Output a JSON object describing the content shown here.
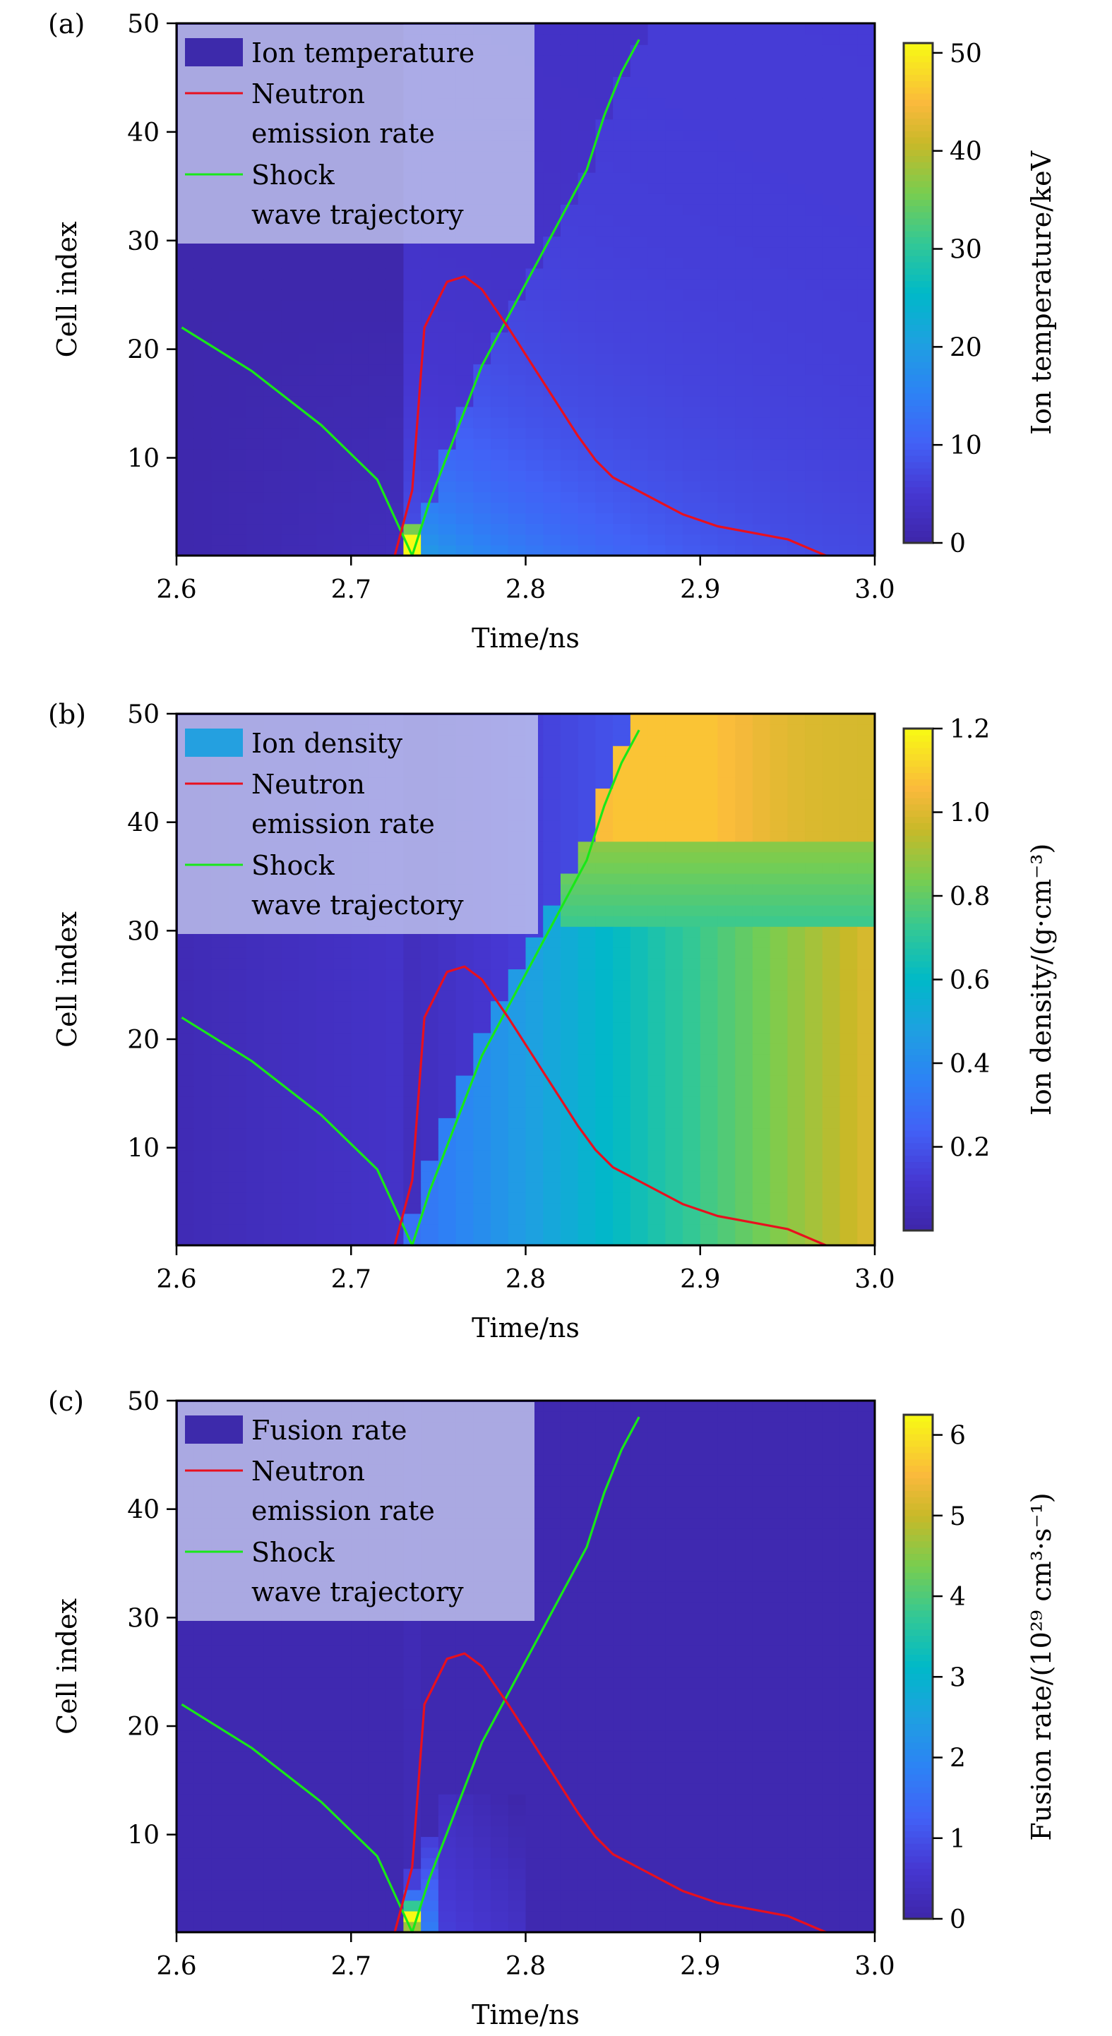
{
  "chart_data": [
    {
      "type": "heatmap",
      "panel_label": "(a)",
      "title": "",
      "xlabel": "Time/ns",
      "ylabel": "Cell index",
      "xlim": [
        2.6,
        3.0
      ],
      "ylim": [
        1,
        50
      ],
      "xticks": [
        "2.6",
        "2.7",
        "2.8",
        "2.9",
        "3.0"
      ],
      "xtick_values": [
        2.6,
        2.7,
        2.8,
        2.9,
        3.0
      ],
      "yticks": [
        "10",
        "20",
        "30",
        "40",
        "50"
      ],
      "ytick_values": [
        10,
        20,
        30,
        40,
        50
      ],
      "colorbar": {
        "label": "Ion temperature/keV",
        "range": [
          0,
          51
        ],
        "ticks": [
          "0",
          "10",
          "20",
          "30",
          "40",
          "50"
        ],
        "tick_values": [
          0,
          10,
          20,
          30,
          40,
          50
        ]
      },
      "legend": {
        "placement": "top-left",
        "entries": [
          {
            "label": "Ion temperature",
            "kind": "patch",
            "color": "#3d2aab"
          },
          {
            "label": "Neutron\nemission rate",
            "kind": "line",
            "color": "#e8101e"
          },
          {
            "label": "Shock\nwave trajectory",
            "kind": "line",
            "color": "#18e818"
          }
        ]
      },
      "heatmap_field": "temperature"
    },
    {
      "type": "heatmap",
      "panel_label": "(b)",
      "title": "",
      "xlabel": "Time/ns",
      "ylabel": "Cell index",
      "xlim": [
        2.6,
        3.0
      ],
      "ylim": [
        1,
        50
      ],
      "xticks": [
        "2.6",
        "2.7",
        "2.8",
        "2.9",
        "3.0"
      ],
      "xtick_values": [
        2.6,
        2.7,
        2.8,
        2.9,
        3.0
      ],
      "yticks": [
        "10",
        "20",
        "30",
        "40",
        "50"
      ],
      "ytick_values": [
        10,
        20,
        30,
        40,
        50
      ],
      "colorbar": {
        "label": "Ion density/(g·cm⁻³)",
        "range": [
          0,
          1.2
        ],
        "ticks": [
          "0.2",
          "0.4",
          "0.6",
          "0.8",
          "1.0",
          "1.2"
        ],
        "tick_values": [
          0.2,
          0.4,
          0.6,
          0.8,
          1.0,
          1.2
        ]
      },
      "legend": {
        "placement": "top-left",
        "entries": [
          {
            "label": "Ion density",
            "kind": "patch",
            "color": "#24a0e0"
          },
          {
            "label": "Neutron\nemission rate",
            "kind": "line",
            "color": "#e8101e"
          },
          {
            "label": "Shock\nwave trajectory",
            "kind": "line",
            "color": "#18e818"
          }
        ]
      },
      "heatmap_field": "density"
    },
    {
      "type": "heatmap",
      "panel_label": "(c)",
      "title": "",
      "xlabel": "Time/ns",
      "ylabel": "Cell index",
      "xlim": [
        2.6,
        3.0
      ],
      "ylim": [
        1,
        50
      ],
      "xticks": [
        "2.6",
        "2.7",
        "2.8",
        "2.9",
        "3.0"
      ],
      "xtick_values": [
        2.6,
        2.7,
        2.8,
        2.9,
        3.0
      ],
      "yticks": [
        "10",
        "20",
        "30",
        "40",
        "50"
      ],
      "ytick_values": [
        10,
        20,
        30,
        40,
        50
      ],
      "colorbar": {
        "label": "Fusion rate/(10²⁹ cm³·s⁻¹)",
        "range": [
          0,
          6.25
        ],
        "ticks": [
          "0",
          "1",
          "2",
          "3",
          "4",
          "5",
          "6"
        ],
        "tick_values": [
          0,
          1,
          2,
          3,
          4,
          5,
          6
        ]
      },
      "legend": {
        "placement": "top-left",
        "entries": [
          {
            "label": "Fusion rate",
            "kind": "patch",
            "color": "#3d2aab"
          },
          {
            "label": "Neutron\nemission rate",
            "kind": "line",
            "color": "#e8101e"
          },
          {
            "label": "Shock\nwave trajectory",
            "kind": "line",
            "color": "#18e818"
          }
        ]
      },
      "heatmap_field": "fusion"
    }
  ],
  "series": {
    "neutron_emission_rate": {
      "name": "Neutron emission rate",
      "color": "#e8101e",
      "x": [
        2.725,
        2.735,
        2.742,
        2.755,
        2.765,
        2.775,
        2.79,
        2.81,
        2.83,
        2.84,
        2.85,
        2.87,
        2.89,
        2.91,
        2.93,
        2.95,
        2.972
      ],
      "y": [
        1,
        7,
        22,
        26.2,
        26.7,
        25.5,
        22,
        17,
        12,
        9.8,
        8.2,
        6.5,
        4.8,
        3.7,
        3.1,
        2.5,
        1
      ]
    },
    "shock_wave_trajectory": {
      "name": "Shock wave trajectory",
      "color": "#18e818",
      "x": [
        2.603,
        2.643,
        2.683,
        2.715,
        2.735,
        2.745,
        2.775,
        2.835,
        2.845,
        2.855,
        2.865
      ],
      "y": [
        22,
        18,
        13,
        8,
        1,
        6,
        18.5,
        36.5,
        41.5,
        45.5,
        48.5
      ]
    }
  },
  "heatmap_description": {
    "temperature": "Cold (~0-2 keV) before 2.735 ns; hot spot ~50 keV at cells 1-2 near t=2.74 ns; moderate 8-15 keV near bottom for 2.74-2.8 ns fading to ~3-5 keV by 3.0 ns",
    "density": "Low (~0.05) before shock; ~0.3-0.5 behind shock at low cells; rises to ~1.0-1.1 at cells 40-50 after 2.85 ns; ~0.6-0.8 elsewhere late",
    "fusion": "Near zero except burst ~6 at cells 1-2 at t≈2.74 ns and ~2-3 at cells 1-6 near 2.74-2.75 ns, weak ~0.5-1 until 2.8 ns"
  }
}
